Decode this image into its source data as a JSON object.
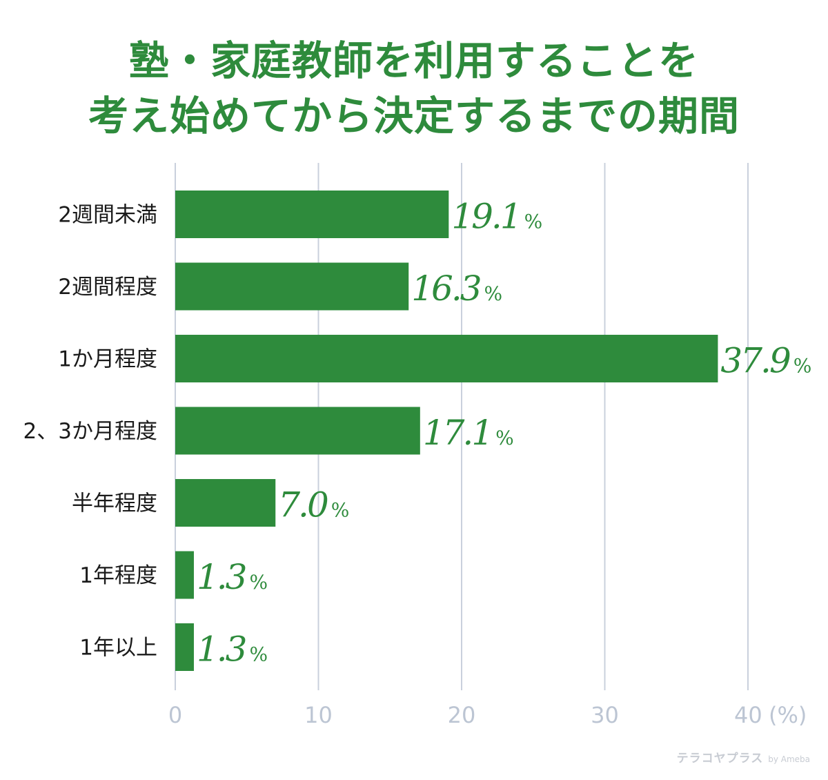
{
  "chart_data": {
    "type": "bar",
    "orientation": "horizontal",
    "title_line1": "塾・家庭教師を利用することを",
    "title_line2": "考え始めてから決定するまでの期間",
    "categories": [
      "2週間未満",
      "2週間程度",
      "1か月程度",
      "2、3か月程度",
      "半年程度",
      "1年程度",
      "1年以上"
    ],
    "values": [
      19.1,
      16.3,
      37.9,
      17.1,
      7.0,
      1.3,
      1.3
    ],
    "value_labels": [
      "19.1",
      "16.3",
      "37.9",
      "17.1",
      "7.0",
      "1.3",
      "1.3"
    ],
    "value_suffix": "%",
    "x_ticks": [
      0,
      10,
      20,
      30,
      40
    ],
    "x_unit": "(%)",
    "xlim": [
      0,
      40
    ],
    "grid": true,
    "colors": {
      "bar": "#2e8b3c",
      "grid": "#c9d0dc",
      "tick_text": "#bcc5d3",
      "title": "#2e8b3c"
    }
  },
  "watermark": {
    "brand": "テラコヤプラス",
    "by": "by Ameba"
  }
}
